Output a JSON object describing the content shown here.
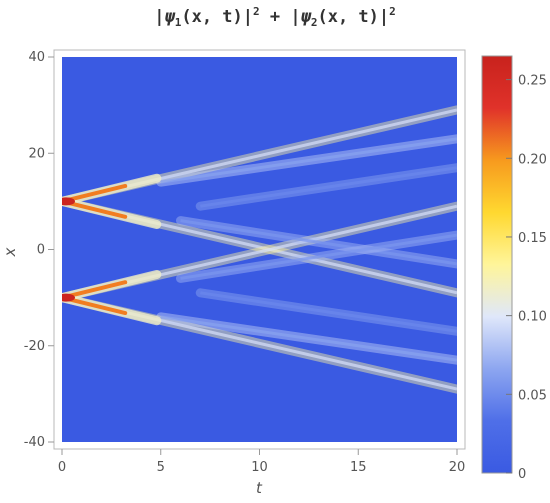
{
  "chart_data": {
    "type": "heatmap",
    "title_parts": {
      "t1": "|",
      "psi1": "ψ",
      "s1": "1",
      "a1": "(x, t)|",
      "p1": "2",
      "plus": " + |",
      "psi2": "ψ",
      "s2": "2",
      "a2": "(x, t)|",
      "p2": "2"
    },
    "xlabel": "t",
    "ylabel": "x",
    "xlim": [
      0,
      20
    ],
    "ylim": [
      -40,
      40
    ],
    "x_ticks": [
      0,
      5,
      10,
      15,
      20
    ],
    "y_ticks": [
      -40,
      -20,
      0,
      20,
      40
    ],
    "colorbar": {
      "range": [
        0,
        0.265
      ],
      "ticks": [
        0,
        0.05,
        0.1,
        0.15,
        0.2,
        0.25
      ],
      "tick_labels": [
        "0",
        "0.05",
        "0.10",
        "0.15",
        "0.20",
        "0.25"
      ],
      "stops": [
        "#3a5ae2",
        "#4f6fe8",
        "#8da6f0",
        "#dfe7fa",
        "#fff59a",
        "#ffd830",
        "#f79a1e",
        "#e0322a",
        "#c8221d"
      ]
    },
    "background_value": 0.0,
    "sources": [
      {
        "x0": 10,
        "t0": 0,
        "peak": 0.26
      },
      {
        "x0": -10,
        "t0": 0,
        "peak": 0.26
      }
    ],
    "beams": [
      {
        "from_t": 0,
        "from_x": 10,
        "to_t": 20,
        "to_x": 29,
        "value": 0.06
      },
      {
        "from_t": 0,
        "from_x": 10,
        "to_t": 20,
        "to_x": -9,
        "value": 0.06
      },
      {
        "from_t": 0,
        "from_x": -10,
        "to_t": 20,
        "to_x": 9,
        "value": 0.06
      },
      {
        "from_t": 0,
        "from_x": -10,
        "to_t": 20,
        "to_x": -29,
        "value": 0.06
      },
      {
        "from_t": 5,
        "from_x": 14,
        "to_t": 20,
        "to_x": 23,
        "value": 0.04
      },
      {
        "from_t": 5,
        "from_x": -14,
        "to_t": 20,
        "to_x": -23,
        "value": 0.04
      },
      {
        "from_t": 6,
        "from_x": 6,
        "to_t": 20,
        "to_x": -3,
        "value": 0.035
      },
      {
        "from_t": 6,
        "from_x": -6,
        "to_t": 20,
        "to_x": 3,
        "value": 0.035
      },
      {
        "from_t": 7,
        "from_x": 9,
        "to_t": 20,
        "to_x": 17,
        "value": 0.03
      },
      {
        "from_t": 7,
        "from_x": -9,
        "to_t": 20,
        "to_x": -17,
        "value": 0.03
      }
    ]
  }
}
